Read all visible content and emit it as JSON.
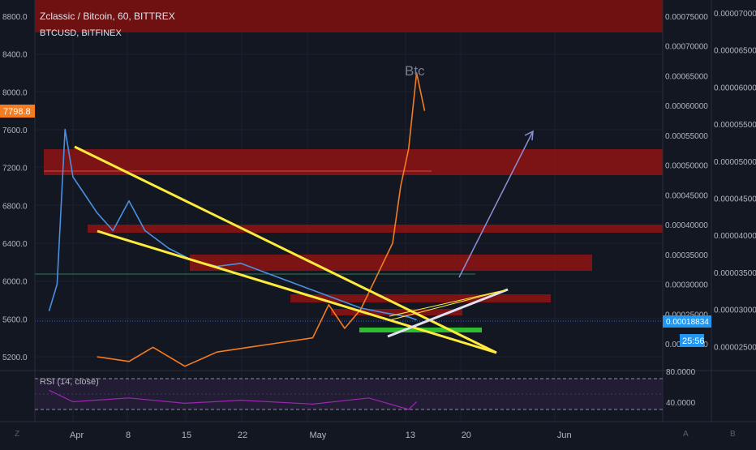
{
  "header": {
    "main_symbol": "Zclassic / Bitcoin, 60, BITTREX",
    "overlay_symbol": "BTCUSD, BITFINEX"
  },
  "price_badges": {
    "btc_last": "7798.8",
    "zcl_last": "0.00018834",
    "countdown": "25:56"
  },
  "annotations": {
    "btc_label": "Btc"
  },
  "rsi": {
    "title": "RSI (14, close)",
    "upper_label": "80.0000",
    "lower_label": "40.0000"
  },
  "bottom_letters": {
    "left": "Z",
    "right_a": "A",
    "right_b": "B"
  },
  "colors": {
    "background": "#131722",
    "zcl_series": "#4a90e2",
    "btc_series": "#f57c1f",
    "trendlines": "#ffeb3b",
    "zones": "#b71c1c",
    "support": "#2ebd2e",
    "rsi": "#9c27b0",
    "badge_btc": "#f57c1f",
    "badge_zcl": "#2196f3"
  },
  "chart_data": [
    {
      "type": "line",
      "title": "Zclassic / Bitcoin, 60, BITTREX",
      "x": [
        "Apr",
        "8",
        "15",
        "22",
        "May",
        "13",
        "20",
        "Jun"
      ],
      "series": [
        {
          "name": "Zclassic / Bitcoin",
          "axis": "right",
          "points": [
            [
              "Mar 29",
              0.000255
            ],
            [
              "Mar 30",
              0.0003
            ],
            [
              "Mar 31",
              0.00056
            ],
            [
              "Apr 1",
              0.00048
            ],
            [
              "Apr 2",
              0.00046
            ],
            [
              "Apr 4",
              0.00042
            ],
            [
              "Apr 6",
              0.00039
            ],
            [
              "Apr 8",
              0.00044
            ],
            [
              "Apr 10",
              0.00039
            ],
            [
              "Apr 13",
              0.00036
            ],
            [
              "Apr 16",
              0.00034
            ],
            [
              "Apr 19",
              0.00033
            ],
            [
              "Apr 22",
              0.000335
            ],
            [
              "Apr 25",
              0.00032
            ],
            [
              "Apr 28",
              0.000305
            ],
            [
              "May 1",
              0.00029
            ],
            [
              "May 4",
              0.000275
            ],
            [
              "May 7",
              0.00026
            ],
            [
              "May 10",
              0.000252
            ],
            [
              "May 13",
              0.000245
            ],
            [
              "May 14",
              0.00024
            ]
          ]
        },
        {
          "name": "BTCUSD, BITFINEX",
          "axis": "left",
          "points": [
            [
              "Apr 4",
              5200
            ],
            [
              "Apr 8",
              5150
            ],
            [
              "Apr 11",
              5300
            ],
            [
              "Apr 15",
              5100
            ],
            [
              "Apr 19",
              5250
            ],
            [
              "Apr 23",
              5300
            ],
            [
              "Apr 27",
              5350
            ],
            [
              "May 1",
              5400
            ],
            [
              "May 3",
              5750
            ],
            [
              "May 5",
              5500
            ],
            [
              "May 7",
              5700
            ],
            [
              "May 9",
              6050
            ],
            [
              "May 11",
              6400
            ],
            [
              "May 12",
              7000
            ],
            [
              "May 13",
              7400
            ],
            [
              "May 14",
              8200
            ],
            [
              "May 15",
              7800
            ]
          ]
        }
      ],
      "y_left_ticks": [
        "8800.0",
        "8400.0",
        "8000.0",
        "7600.0",
        "7200.0",
        "6800.0",
        "6400.0",
        "6000.0",
        "5600.0",
        "5200.0"
      ],
      "y_left_range": [
        5200,
        8800
      ],
      "y_mid_ticks": [
        "0.00075000",
        "0.00070000",
        "0.00065000",
        "0.00060000",
        "0.00055000",
        "0.00050000",
        "0.00045000",
        "0.00040000",
        "0.00035000",
        "0.00030000",
        "0.00025000",
        "0.00020000"
      ],
      "y_right_ticks": [
        "0.00007000",
        "0.00006500",
        "0.00006000",
        "0.00005500",
        "0.00005000",
        "0.00004500",
        "0.00004000",
        "0.00003500",
        "0.00003000",
        "0.00002500"
      ],
      "grid": true
    },
    {
      "type": "line",
      "title": "RSI (14, close)",
      "y_ticks": [
        "80.0000",
        "40.0000"
      ],
      "series": [
        {
          "name": "RSI",
          "points": [
            [
              "Mar 29",
              65
            ],
            [
              "Apr 1",
              50
            ],
            [
              "Apr 8",
              55
            ],
            [
              "Apr 15",
              48
            ],
            [
              "Apr 22",
              52
            ],
            [
              "May 1",
              47
            ],
            [
              "May 8",
              55
            ],
            [
              "May 13",
              40
            ],
            [
              "May 14",
              50
            ]
          ]
        }
      ]
    }
  ]
}
